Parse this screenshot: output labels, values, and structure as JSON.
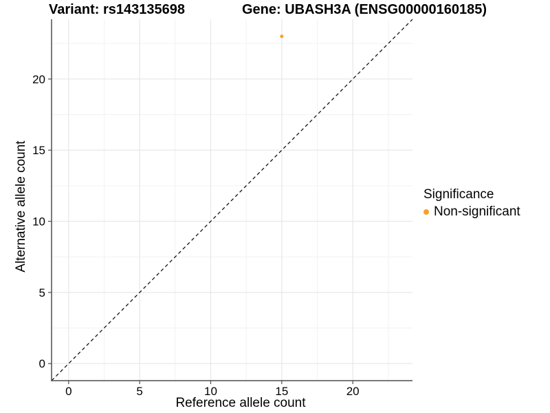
{
  "titles": {
    "variant": "Variant: rs143135698",
    "gene": "Gene: UBASH3A (ENSG00000160185)"
  },
  "legend": {
    "title": "Significance",
    "items": [
      {
        "label": "Non-significant",
        "color": "#F9A02B"
      }
    ]
  },
  "chart_data": {
    "type": "scatter",
    "title": "Variant: rs143135698   Gene: UBASH3A (ENSG00000160185)",
    "xlabel": "Reference allele count",
    "ylabel": "Alternative allele count",
    "series": [
      {
        "name": "Non-significant",
        "color": "#F9A02B",
        "points": [
          {
            "x": 15,
            "y": 23
          }
        ]
      }
    ],
    "xlim": [
      -1.2,
      24.2
    ],
    "ylim": [
      -1.2,
      24.2
    ],
    "x_ticks": [
      0,
      5,
      10,
      15,
      20
    ],
    "y_ticks": [
      0,
      5,
      10,
      15,
      20
    ],
    "x_minor_ticks": [
      2.5,
      7.5,
      12.5,
      17.5,
      22.5
    ],
    "y_minor_ticks": [
      2.5,
      7.5,
      12.5,
      17.5,
      22.5
    ],
    "reference_line": {
      "type": "identity y=x",
      "style": "dashed",
      "color": "#000000"
    },
    "grid": "major+minor",
    "legend_position": "right",
    "legend_title": "Significance"
  },
  "style": {
    "point_color": "#F9A02B",
    "point_radius": 2.5,
    "grid_major_color": "#E7E7E7",
    "grid_minor_color": "#F2F2F2",
    "axis_line_color": "#4D4D4D",
    "tick_label_color": "#000000",
    "text_color": "#000000",
    "background": "#FFFFFF"
  }
}
